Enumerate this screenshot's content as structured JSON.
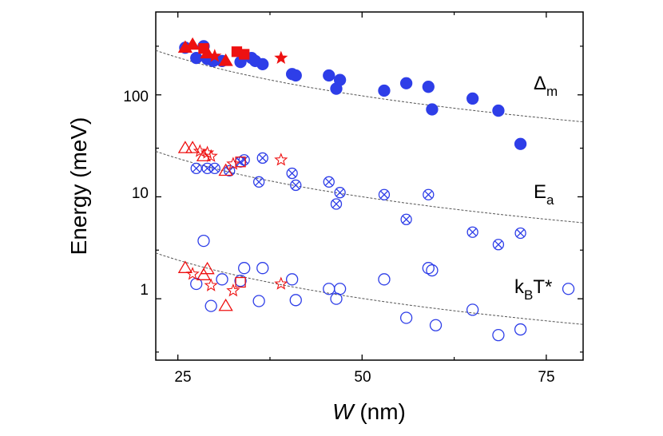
{
  "chart_data": {
    "type": "scatter",
    "title": "",
    "xlabel_italic": "W",
    "xlabel_unit": " (nm)",
    "ylabel": "Energy (meV)",
    "xlim": [
      22,
      80
    ],
    "ylim": [
      0.25,
      650
    ],
    "yscale": "log",
    "grid": false,
    "x_ticks": [
      25,
      50,
      75
    ],
    "x_tick_labels": [
      "25",
      "50",
      "75"
    ],
    "y_ticks": [
      1,
      10,
      100
    ],
    "y_tick_labels": [
      "1",
      "10",
      "100"
    ],
    "colors": {
      "blue": "#2e3ee8",
      "red": "#ee1111",
      "fit": "#555555"
    },
    "series_labels": [
      {
        "main": "Δ",
        "sub": "m",
        "sup": ""
      },
      {
        "main": "E",
        "sub": "a",
        "sup": ""
      },
      {
        "main": "k",
        "sub": "B",
        "sup": "T*"
      }
    ],
    "fits": [
      {
        "name": "Delta_m fit",
        "A": 13000,
        "n": 1.25
      },
      {
        "name": "E_a fit",
        "A": 1330,
        "n": 1.25
      },
      {
        "name": "kBT fit",
        "A": 134,
        "n": 1.25
      }
    ],
    "series": [
      {
        "name": "Delta_m",
        "marker": "filled-circle",
        "color": "blue",
        "points": [
          [
            26,
            290
          ],
          [
            27.5,
            230
          ],
          [
            28.5,
            300
          ],
          [
            29,
            225
          ],
          [
            29.8,
            215
          ],
          [
            31,
            215
          ],
          [
            33.5,
            210
          ],
          [
            35,
            230
          ],
          [
            35.5,
            215
          ],
          [
            36.5,
            200
          ],
          [
            40.5,
            160
          ],
          [
            41,
            155
          ],
          [
            45.5,
            155
          ],
          [
            46.5,
            115
          ],
          [
            47,
            140
          ],
          [
            53,
            110
          ],
          [
            56,
            130
          ],
          [
            59,
            120
          ],
          [
            59.5,
            72
          ],
          [
            65,
            92
          ],
          [
            68.5,
            70
          ],
          [
            71.5,
            33
          ]
        ]
      },
      {
        "name": "Delta_m (red)",
        "markers": "mixed-filled",
        "color": "red",
        "points": [
          [
            26,
            290,
            "triangle"
          ],
          [
            27,
            310,
            "triangle"
          ],
          [
            28.5,
            285,
            "square"
          ],
          [
            29,
            255,
            "triangle"
          ],
          [
            30,
            240,
            "star"
          ],
          [
            31.5,
            215,
            "triangle"
          ],
          [
            33,
            265,
            "square"
          ],
          [
            34,
            250,
            "square"
          ],
          [
            39,
            230,
            "star"
          ]
        ]
      },
      {
        "name": "E_a",
        "marker": "crossed-circle",
        "color": "blue",
        "points": [
          [
            27.5,
            19
          ],
          [
            29,
            19
          ],
          [
            30,
            19
          ],
          [
            32,
            18
          ],
          [
            33.5,
            22
          ],
          [
            34,
            23
          ],
          [
            36,
            14
          ],
          [
            36.5,
            24
          ],
          [
            40.5,
            17
          ],
          [
            41,
            13
          ],
          [
            45.5,
            14
          ],
          [
            46.5,
            8.5
          ],
          [
            47,
            11
          ],
          [
            53,
            10.5
          ],
          [
            56,
            6
          ],
          [
            59,
            10.5
          ],
          [
            65,
            4.5
          ],
          [
            68.5,
            3.4
          ],
          [
            71.5,
            4.4
          ]
        ]
      },
      {
        "name": "E_a (red)",
        "markers": "mixed-open",
        "color": "red",
        "points": [
          [
            26,
            30,
            "triangle"
          ],
          [
            27,
            30,
            "triangle"
          ],
          [
            28,
            28,
            "star"
          ],
          [
            28.5,
            25,
            "triangle"
          ],
          [
            29,
            27,
            "star"
          ],
          [
            29.5,
            25,
            "star"
          ],
          [
            31.5,
            18,
            "triangle"
          ],
          [
            32.5,
            21,
            "star"
          ],
          [
            33.5,
            22,
            "square"
          ],
          [
            39,
            23,
            "star"
          ]
        ]
      },
      {
        "name": "kBT*",
        "marker": "open-circle",
        "color": "blue",
        "points": [
          [
            28.5,
            3.7
          ],
          [
            27.5,
            1.4
          ],
          [
            29.5,
            0.85
          ],
          [
            31,
            1.55
          ],
          [
            33.5,
            1.5
          ],
          [
            34,
            2.0
          ],
          [
            36,
            0.95
          ],
          [
            36.5,
            2.0
          ],
          [
            40.5,
            1.55
          ],
          [
            41,
            0.97
          ],
          [
            45.5,
            1.25
          ],
          [
            46.5,
            1.0
          ],
          [
            47,
            1.25
          ],
          [
            53,
            1.55
          ],
          [
            56,
            0.65
          ],
          [
            59,
            2.0
          ],
          [
            59.5,
            1.9
          ],
          [
            60,
            0.55
          ],
          [
            65,
            0.78
          ],
          [
            68.5,
            0.44
          ],
          [
            71.5,
            0.5
          ],
          [
            78,
            1.25
          ]
        ]
      },
      {
        "name": "kBT* (red)",
        "markers": "mixed-open",
        "color": "red",
        "points": [
          [
            26,
            2.0,
            "triangle"
          ],
          [
            27,
            1.75,
            "star"
          ],
          [
            28.5,
            1.7,
            "triangle"
          ],
          [
            29,
            1.95,
            "triangle"
          ],
          [
            29.5,
            1.35,
            "star"
          ],
          [
            31.5,
            0.85,
            "triangle"
          ],
          [
            32.5,
            1.2,
            "star"
          ],
          [
            33.5,
            1.45,
            "square"
          ],
          [
            39,
            1.4,
            "star"
          ]
        ]
      }
    ]
  }
}
